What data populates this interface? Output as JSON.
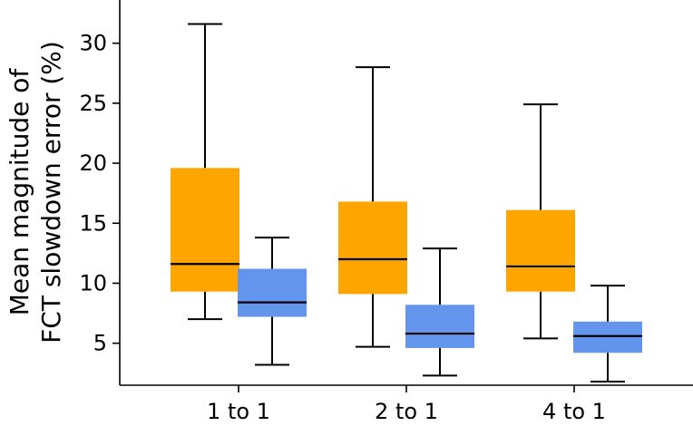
{
  "chart_data": {
    "type": "box",
    "title": "",
    "xlabel": "",
    "ylabel": [
      "Mean magnitude of",
      "FCT slowdown error (%)"
    ],
    "categories": [
      "1 to 1",
      "2 to 1",
      "4 to 1"
    ],
    "yticks": [
      5,
      10,
      15,
      20,
      25,
      30
    ],
    "ylim": [
      1.5,
      33.6
    ],
    "grid": false,
    "legend": "none",
    "series": [
      {
        "color": "#FFA500",
        "boxes": [
          {
            "whisker_low": 7.0,
            "q1": 9.3,
            "median": 11.6,
            "q3": 19.6,
            "whisker_high": 31.6
          },
          {
            "whisker_low": 4.7,
            "q1": 9.1,
            "median": 12.0,
            "q3": 16.8,
            "whisker_high": 28.0
          },
          {
            "whisker_low": 5.4,
            "q1": 9.3,
            "median": 11.4,
            "q3": 16.1,
            "whisker_high": 24.9
          }
        ]
      },
      {
        "color": "#6495ED",
        "boxes": [
          {
            "whisker_low": 3.2,
            "q1": 7.2,
            "median": 8.4,
            "q3": 11.2,
            "whisker_high": 13.8
          },
          {
            "whisker_low": 2.3,
            "q1": 4.6,
            "median": 5.8,
            "q3": 8.2,
            "whisker_high": 12.9
          },
          {
            "whisker_low": 1.8,
            "q1": 4.2,
            "median": 5.6,
            "q3": 6.8,
            "whisker_high": 9.8
          }
        ]
      }
    ]
  }
}
